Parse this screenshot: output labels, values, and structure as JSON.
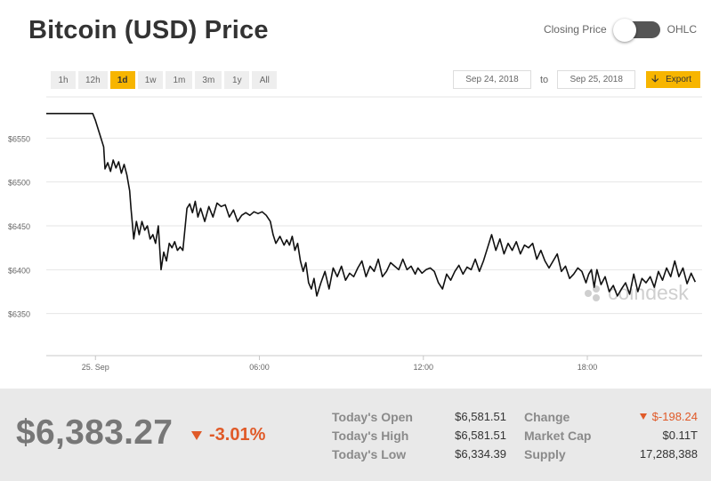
{
  "header": {
    "title": "Bitcoin (USD) Price",
    "toggle_left_label": "Closing Price",
    "toggle_right_label": "OHLC"
  },
  "range_buttons": [
    {
      "label": "1h",
      "active": false
    },
    {
      "label": "12h",
      "active": false
    },
    {
      "label": "1d",
      "active": true
    },
    {
      "label": "1w",
      "active": false
    },
    {
      "label": "1m",
      "active": false
    },
    {
      "label": "3m",
      "active": false
    },
    {
      "label": "1y",
      "active": false
    },
    {
      "label": "All",
      "active": false
    }
  ],
  "date_range": {
    "from": "Sep 24, 2018",
    "to_label": "to",
    "to": "Sep 25, 2018",
    "export_label": "Export"
  },
  "colors": {
    "accent": "#f7b500",
    "line": "#111111",
    "negative": "#e05a28"
  },
  "chart_data": {
    "type": "line",
    "title": "",
    "xlabel": "",
    "ylabel": "",
    "watermark": "coindesk",
    "grid": "horizontal",
    "x_ticks": [
      {
        "label": "25. Sep",
        "hour": 0
      },
      {
        "label": "06:00",
        "hour": 6
      },
      {
        "label": "12:00",
        "hour": 12
      },
      {
        "label": "18:00",
        "hour": 18
      }
    ],
    "y_ticks": [
      {
        "label": "$6350",
        "value": 6350
      },
      {
        "label": "$6400",
        "value": 6400
      },
      {
        "label": "$6450",
        "value": 6450
      },
      {
        "label": "$6500",
        "value": 6500
      },
      {
        "label": "$6550",
        "value": 6550
      }
    ],
    "x_range_hours": [
      -1.8,
      22.2
    ],
    "ylim": [
      6302,
      6598
    ],
    "series": [
      {
        "hours": [
          -1.8,
          -0.1,
          0.0,
          0.15,
          0.3,
          0.35,
          0.45,
          0.55,
          0.65,
          0.75,
          0.85,
          0.95,
          1.05,
          1.15,
          1.25,
          1.3,
          1.4,
          1.5,
          1.6,
          1.7,
          1.8,
          1.9,
          2.0,
          2.1,
          2.2,
          2.3,
          2.4,
          2.5,
          2.6,
          2.7,
          2.8,
          2.9,
          3.0,
          3.1,
          3.2,
          3.35,
          3.45,
          3.55,
          3.65,
          3.75,
          3.85,
          4.0,
          4.15,
          4.3,
          4.45,
          4.6,
          4.75,
          4.9,
          5.05,
          5.2,
          5.35,
          5.5,
          5.65,
          5.8,
          5.95,
          6.1,
          6.25,
          6.4,
          6.5,
          6.6,
          6.75,
          6.9,
          7.0,
          7.1,
          7.2,
          7.3,
          7.4,
          7.5,
          7.6,
          7.7,
          7.8,
          7.9,
          8.0,
          8.1,
          8.25,
          8.4,
          8.55,
          8.7,
          8.85,
          9.0,
          9.15,
          9.3,
          9.45,
          9.6,
          9.75,
          9.9,
          10.05,
          10.2,
          10.35,
          10.5,
          10.65,
          10.8,
          10.95,
          11.1,
          11.25,
          11.4,
          11.55,
          11.7,
          11.8,
          11.95,
          12.1,
          12.25,
          12.4,
          12.55,
          12.7,
          12.85,
          13.0,
          13.15,
          13.3,
          13.45,
          13.6,
          13.75,
          13.9,
          14.05,
          14.2,
          14.35,
          14.5,
          14.65,
          14.8,
          14.95,
          15.1,
          15.25,
          15.4,
          15.55,
          15.7,
          15.85,
          16.0,
          16.15,
          16.3,
          16.45,
          16.6,
          16.75,
          16.9,
          17.05,
          17.2,
          17.35,
          17.5,
          17.65,
          17.8,
          17.95,
          18.05,
          18.15,
          18.25,
          18.35,
          18.5,
          18.65,
          18.8,
          18.95,
          19.1,
          19.25,
          19.4,
          19.55,
          19.7,
          19.85,
          20.0,
          20.15,
          20.3,
          20.45,
          20.6,
          20.75,
          20.9,
          21.05,
          21.2,
          21.35,
          21.5,
          21.65,
          21.8,
          21.95
        ],
        "values": [
          6578,
          6578,
          6570,
          6555,
          6540,
          6515,
          6522,
          6512,
          6525,
          6516,
          6523,
          6510,
          6520,
          6508,
          6490,
          6470,
          6435,
          6455,
          6440,
          6455,
          6445,
          6450,
          6435,
          6440,
          6430,
          6450,
          6400,
          6420,
          6410,
          6430,
          6425,
          6432,
          6422,
          6426,
          6422,
          6470,
          6475,
          6465,
          6478,
          6460,
          6470,
          6455,
          6472,
          6460,
          6476,
          6472,
          6474,
          6460,
          6468,
          6455,
          6462,
          6465,
          6462,
          6466,
          6464,
          6466,
          6462,
          6455,
          6440,
          6430,
          6438,
          6428,
          6434,
          6428,
          6438,
          6422,
          6430,
          6410,
          6398,
          6408,
          6385,
          6378,
          6390,
          6370,
          6385,
          6398,
          6378,
          6402,
          6392,
          6404,
          6388,
          6396,
          6392,
          6402,
          6410,
          6392,
          6404,
          6398,
          6412,
          6392,
          6398,
          6408,
          6404,
          6400,
          6412,
          6400,
          6404,
          6395,
          6402,
          6396,
          6400,
          6402,
          6398,
          6385,
          6378,
          6395,
          6388,
          6398,
          6405,
          6395,
          6403,
          6400,
          6412,
          6398,
          6410,
          6425,
          6440,
          6422,
          6435,
          6418,
          6430,
          6422,
          6432,
          6418,
          6428,
          6425,
          6430,
          6412,
          6422,
          6410,
          6402,
          6410,
          6418,
          6398,
          6404,
          6390,
          6395,
          6402,
          6398,
          6385,
          6395,
          6400,
          6380,
          6400,
          6383,
          6392,
          6375,
          6382,
          6370,
          6378,
          6385,
          6372,
          6395,
          6375,
          6390,
          6385,
          6392,
          6380,
          6398,
          6388,
          6402,
          6392,
          6410,
          6392,
          6402,
          6384,
          6396,
          6386
        ]
      }
    ]
  },
  "summary": {
    "price": "$6,383.27",
    "change_pct": "-3.01%",
    "stats_left": [
      {
        "label": "Today's Open",
        "value": "$6,581.51"
      },
      {
        "label": "Today's High",
        "value": "$6,581.51"
      },
      {
        "label": "Today's Low",
        "value": "$6,334.39"
      }
    ],
    "stats_right": [
      {
        "label": "Change",
        "value": "$-198.24"
      },
      {
        "label": "Market Cap",
        "value": "$0.11T"
      },
      {
        "label": "Supply",
        "value": "17,288,388"
      }
    ]
  }
}
